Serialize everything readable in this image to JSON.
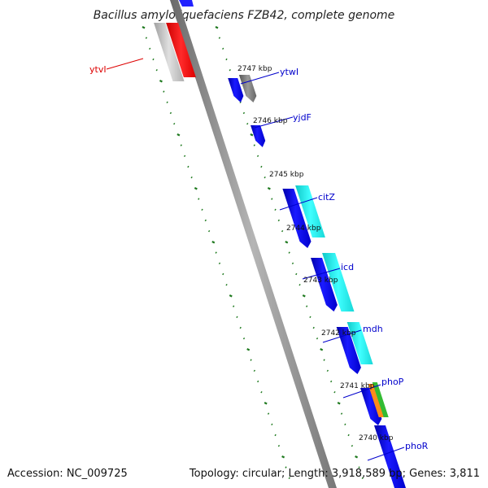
{
  "title": "Bacillus amyloliquefaciens FZB42, complete genome",
  "footer": {
    "accession": "Accession: NC_009725",
    "summary": "Topology: circular; Length: 3,918,589 bp; Genes: 3,811"
  },
  "colors": {
    "backbone": "#8a8a8a",
    "tick": "#1f7a1f",
    "forward_cds": "#0000ee",
    "reverse_cds_cyan": "#22f0f0",
    "pseudo_gray": "#8c8c8c",
    "highlight_red": "#ff0000",
    "label_blue": "#0000cc",
    "label_red": "#dd0000",
    "orange": "#ff8c1a",
    "green": "#33bb33"
  },
  "kbp_labels": [
    "2747 kbp",
    "2746 kbp",
    "2745 kbp",
    "2744 kbp",
    "2743 kbp",
    "2742 kbp",
    "2741 kbp",
    "2740 kbp"
  ],
  "gene_labels": [
    {
      "text": "ytvI",
      "color": "red"
    },
    {
      "text": "ytwI",
      "color": "blue"
    },
    {
      "text": "yjdF",
      "color": "blue"
    },
    {
      "text": "citZ",
      "color": "blue"
    },
    {
      "text": "icd",
      "color": "blue"
    },
    {
      "text": "mdh",
      "color": "blue"
    },
    {
      "text": "phoP",
      "color": "blue"
    },
    {
      "text": "phoR",
      "color": "blue"
    }
  ]
}
